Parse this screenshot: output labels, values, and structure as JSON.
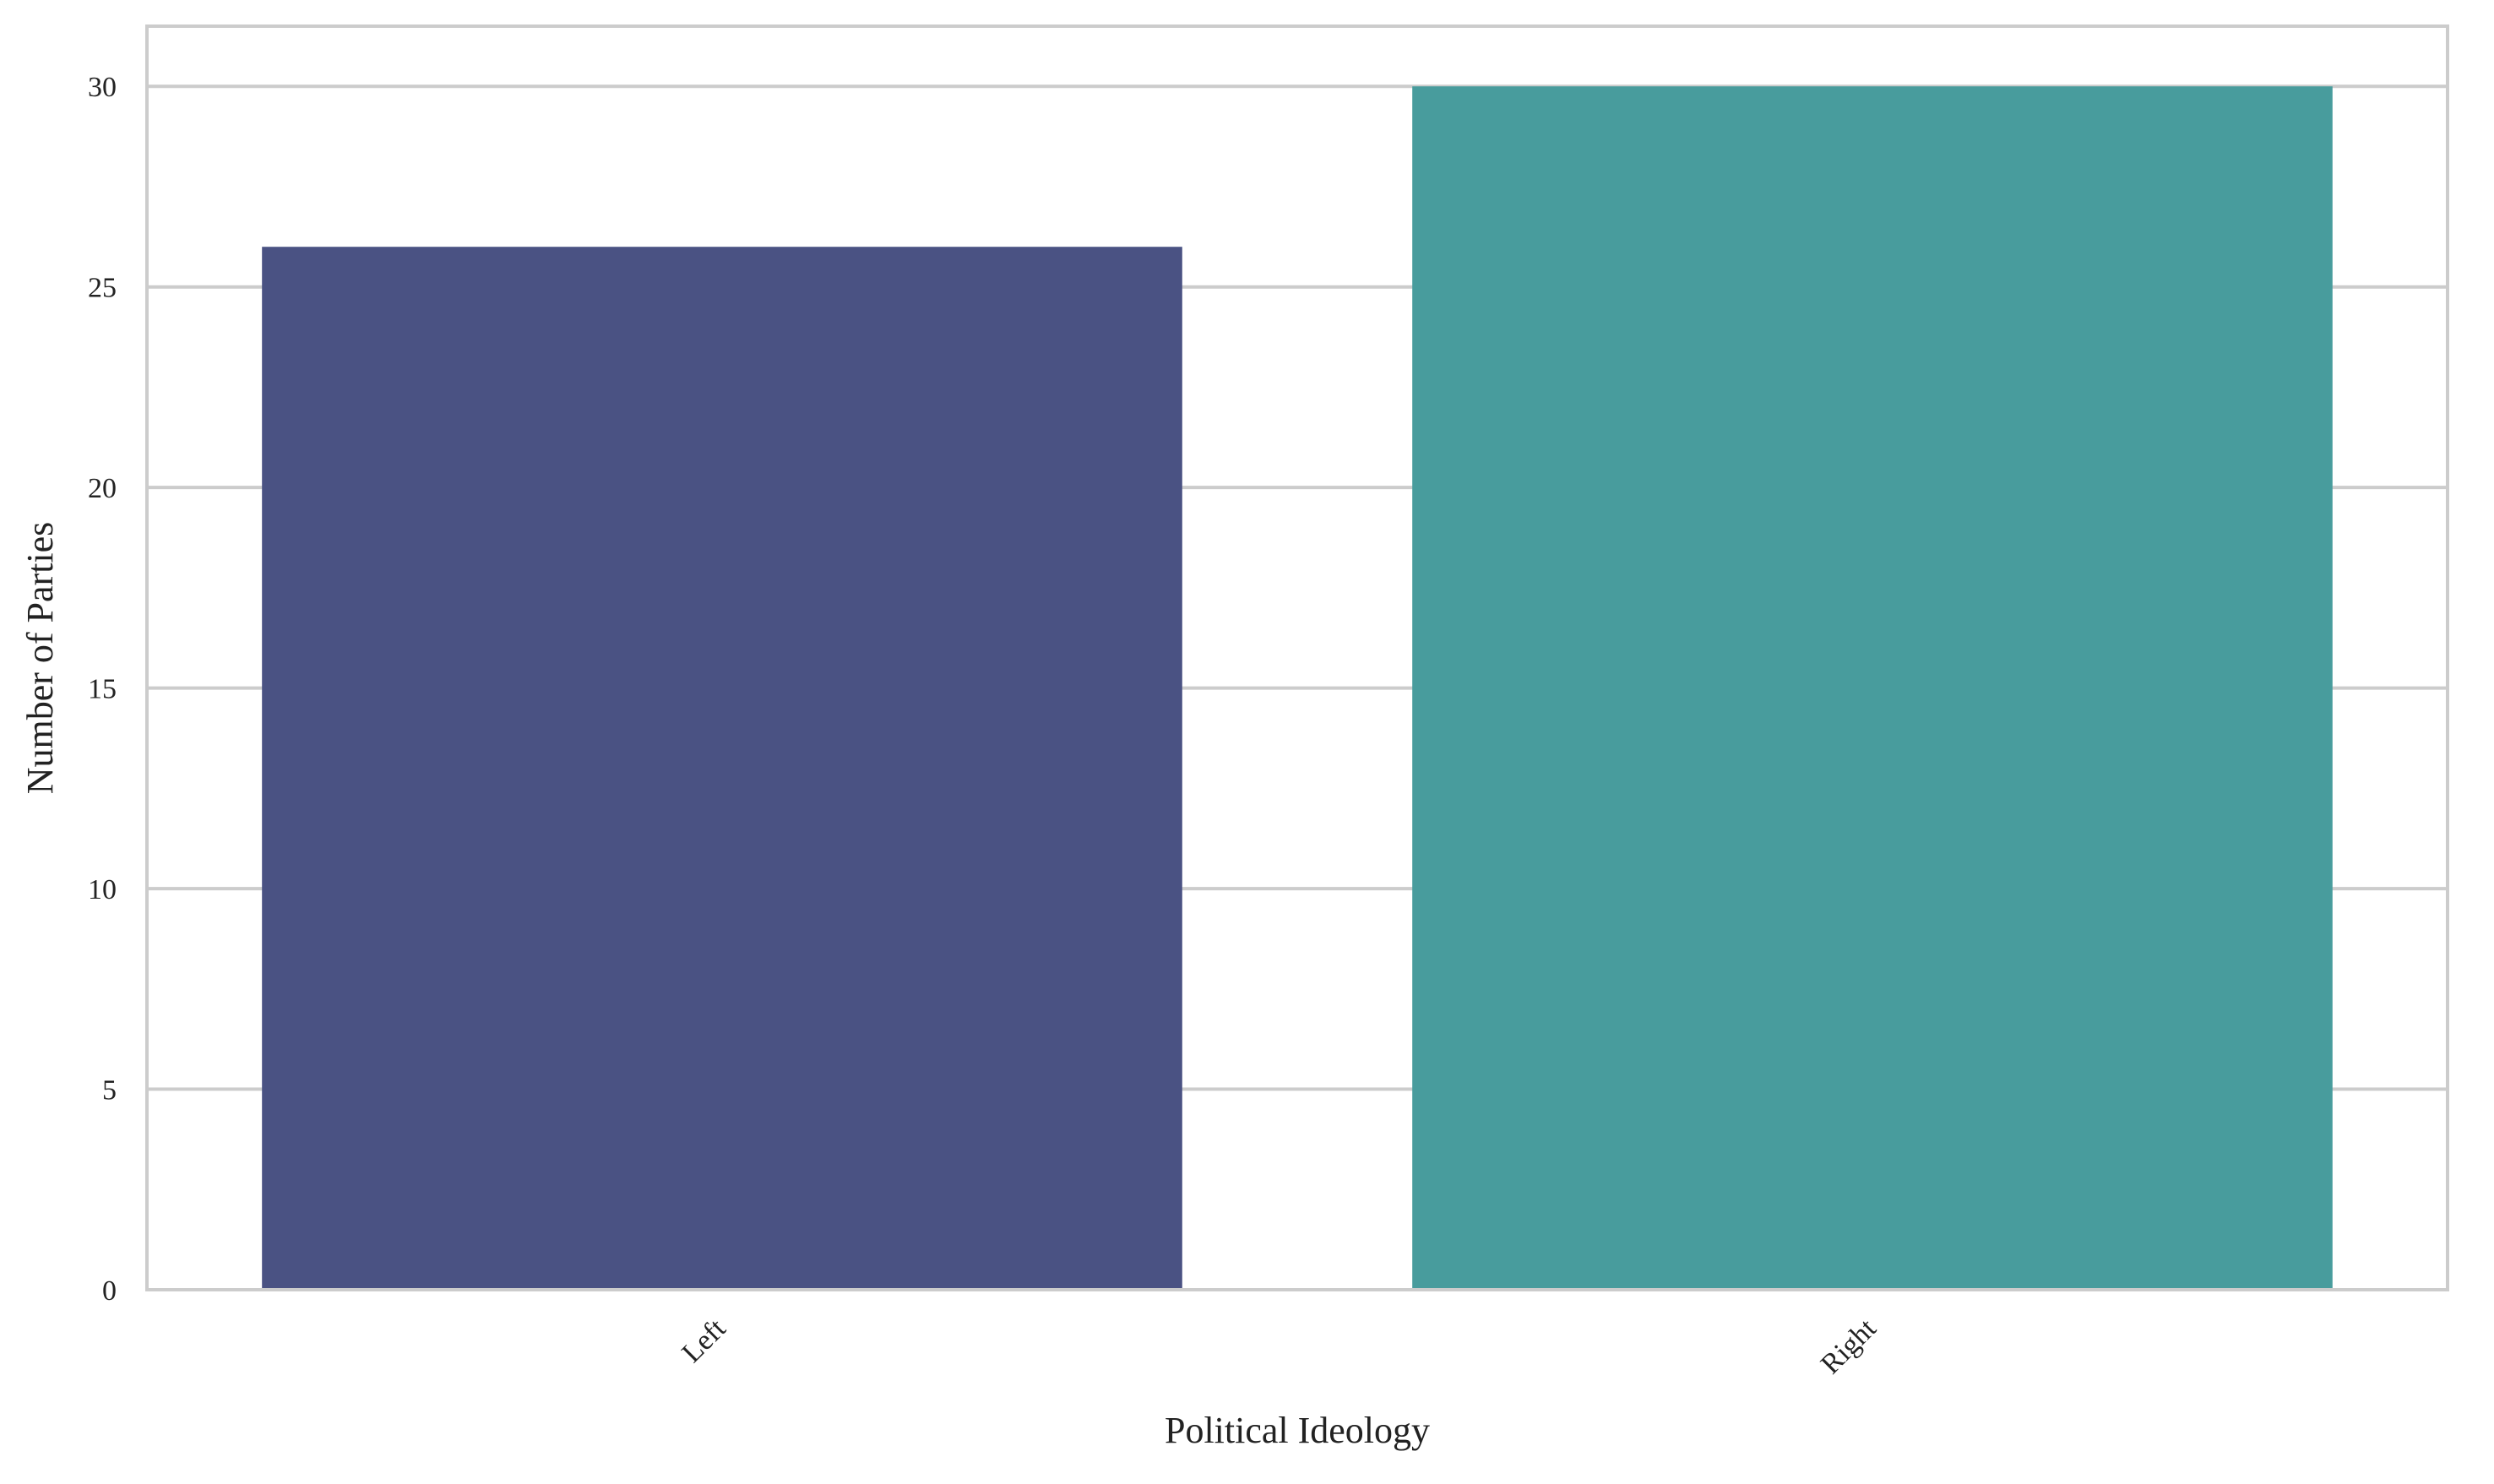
{
  "chart_data": {
    "type": "bar",
    "title": "",
    "xlabel": "Political Ideology",
    "ylabel": "Number of Parties",
    "categories": [
      "Left",
      "Right"
    ],
    "values": [
      26,
      30
    ],
    "colors": [
      "#4A5283",
      "#489C9D"
    ],
    "ylim": [
      0,
      31.5
    ],
    "yticks": [
      0,
      5,
      10,
      15,
      20,
      25,
      30
    ],
    "grid": true,
    "legend": "none",
    "x_tick_rotation_deg": 45
  }
}
